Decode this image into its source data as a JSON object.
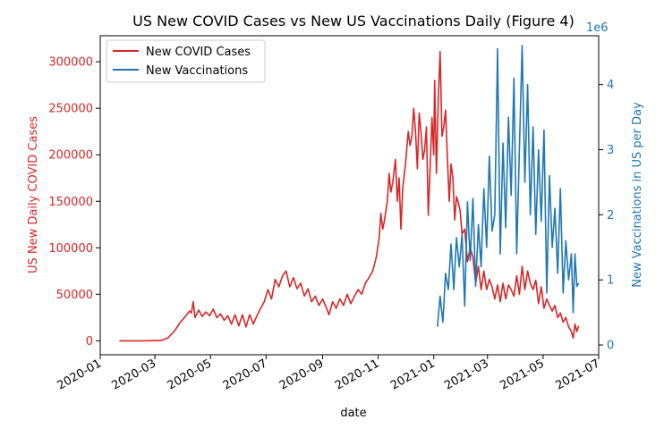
{
  "chart_data": {
    "type": "line",
    "title": "US New COVID Cases vs New US Vaccinations Daily (Figure 4)",
    "xlabel": "date",
    "ylabel_left": "US New Daily COVID Cases",
    "ylabel_right": "New Vaccinations in US per Day",
    "right_axis_multiplier": "1e6",
    "x_range": [
      "2020-01-01",
      "2021-07-01"
    ],
    "x_ticks": [
      "2020-01",
      "2020-03",
      "2020-05",
      "2020-07",
      "2020-09",
      "2020-11",
      "2021-01",
      "2021-03",
      "2021-05",
      "2021-07"
    ],
    "ylim_left": [
      -15000,
      328000
    ],
    "ylim_right": [
      -0.15,
      4.75
    ],
    "y_ticks_left": [
      "0",
      "50000",
      "100000",
      "150000",
      "200000",
      "250000",
      "300000"
    ],
    "y_ticks_right": [
      "0",
      "1",
      "2",
      "3",
      "4"
    ],
    "legend_position": "upper-left",
    "colors": {
      "cases": "#d62728",
      "vaccinations": "#1f77b4"
    },
    "series": [
      {
        "name": "New COVID Cases",
        "axis": "left",
        "points": [
          [
            "2020-01-22",
            0
          ],
          [
            "2020-02-15",
            0
          ],
          [
            "2020-03-08",
            300
          ],
          [
            "2020-03-15",
            3000
          ],
          [
            "2020-03-22",
            10000
          ],
          [
            "2020-03-29",
            20000
          ],
          [
            "2020-04-05",
            28000
          ],
          [
            "2020-04-08",
            32000
          ],
          [
            "2020-04-10",
            30000
          ],
          [
            "2020-04-12",
            42000
          ],
          [
            "2020-04-14",
            25000
          ],
          [
            "2020-04-18",
            33000
          ],
          [
            "2020-04-22",
            26000
          ],
          [
            "2020-04-26",
            31000
          ],
          [
            "2020-04-30",
            27000
          ],
          [
            "2020-05-04",
            34000
          ],
          [
            "2020-05-08",
            25000
          ],
          [
            "2020-05-12",
            29000
          ],
          [
            "2020-05-16",
            22000
          ],
          [
            "2020-05-20",
            27000
          ],
          [
            "2020-05-24",
            18000
          ],
          [
            "2020-05-28",
            28000
          ],
          [
            "2020-06-01",
            16000
          ],
          [
            "2020-06-05",
            28000
          ],
          [
            "2020-06-09",
            15000
          ],
          [
            "2020-06-13",
            28000
          ],
          [
            "2020-06-17",
            18000
          ],
          [
            "2020-06-21",
            27000
          ],
          [
            "2020-06-25",
            35000
          ],
          [
            "2020-06-29",
            42000
          ],
          [
            "2020-07-03",
            55000
          ],
          [
            "2020-07-07",
            45000
          ],
          [
            "2020-07-11",
            66000
          ],
          [
            "2020-07-15",
            58000
          ],
          [
            "2020-07-19",
            70000
          ],
          [
            "2020-07-23",
            75000
          ],
          [
            "2020-07-27",
            58000
          ],
          [
            "2020-07-31",
            68000
          ],
          [
            "2020-08-04",
            56000
          ],
          [
            "2020-08-08",
            62000
          ],
          [
            "2020-08-12",
            48000
          ],
          [
            "2020-08-16",
            56000
          ],
          [
            "2020-08-20",
            42000
          ],
          [
            "2020-08-24",
            48000
          ],
          [
            "2020-08-28",
            38000
          ],
          [
            "2020-09-01",
            45000
          ],
          [
            "2020-09-05",
            36000
          ],
          [
            "2020-09-08",
            28000
          ],
          [
            "2020-09-12",
            42000
          ],
          [
            "2020-09-16",
            35000
          ],
          [
            "2020-09-20",
            45000
          ],
          [
            "2020-09-24",
            38000
          ],
          [
            "2020-09-28",
            50000
          ],
          [
            "2020-10-02",
            40000
          ],
          [
            "2020-10-06",
            48000
          ],
          [
            "2020-10-10",
            55000
          ],
          [
            "2020-10-14",
            50000
          ],
          [
            "2020-10-18",
            62000
          ],
          [
            "2020-10-22",
            68000
          ],
          [
            "2020-10-26",
            75000
          ],
          [
            "2020-10-30",
            90000
          ],
          [
            "2020-11-02",
            110000
          ],
          [
            "2020-11-04",
            137000
          ],
          [
            "2020-11-06",
            120000
          ],
          [
            "2020-11-08",
            130000
          ],
          [
            "2020-11-11",
            150000
          ],
          [
            "2020-11-13",
            180000
          ],
          [
            "2020-11-15",
            160000
          ],
          [
            "2020-11-17",
            170000
          ],
          [
            "2020-11-20",
            195000
          ],
          [
            "2020-11-22",
            150000
          ],
          [
            "2020-11-24",
            175000
          ],
          [
            "2020-11-26",
            120000
          ],
          [
            "2020-11-28",
            165000
          ],
          [
            "2020-12-01",
            190000
          ],
          [
            "2020-12-04",
            225000
          ],
          [
            "2020-12-06",
            210000
          ],
          [
            "2020-12-08",
            220000
          ],
          [
            "2020-12-10",
            250000
          ],
          [
            "2020-12-12",
            225000
          ],
          [
            "2020-12-14",
            185000
          ],
          [
            "2020-12-16",
            245000
          ],
          [
            "2020-12-18",
            225000
          ],
          [
            "2020-12-20",
            195000
          ],
          [
            "2020-12-22",
            205000
          ],
          [
            "2020-12-24",
            230000
          ],
          [
            "2020-12-26",
            135000
          ],
          [
            "2020-12-28",
            185000
          ],
          [
            "2020-12-30",
            240000
          ],
          [
            "2021-01-01",
            200000
          ],
          [
            "2021-01-02",
            280000
          ],
          [
            "2021-01-04",
            180000
          ],
          [
            "2021-01-06",
            260000
          ],
          [
            "2021-01-08",
            311000
          ],
          [
            "2021-01-10",
            220000
          ],
          [
            "2021-01-12",
            230000
          ],
          [
            "2021-01-14",
            248000
          ],
          [
            "2021-01-16",
            195000
          ],
          [
            "2021-01-18",
            150000
          ],
          [
            "2021-01-20",
            190000
          ],
          [
            "2021-01-22",
            175000
          ],
          [
            "2021-01-24",
            130000
          ],
          [
            "2021-01-26",
            155000
          ],
          [
            "2021-01-28",
            148000
          ],
          [
            "2021-01-30",
            140000
          ],
          [
            "2021-02-01",
            115000
          ],
          [
            "2021-02-04",
            120000
          ],
          [
            "2021-02-07",
            85000
          ],
          [
            "2021-02-10",
            100000
          ],
          [
            "2021-02-13",
            90000
          ],
          [
            "2021-02-16",
            62000
          ],
          [
            "2021-02-19",
            80000
          ],
          [
            "2021-02-22",
            55000
          ],
          [
            "2021-02-25",
            75000
          ],
          [
            "2021-02-28",
            55000
          ],
          [
            "2021-03-03",
            66000
          ],
          [
            "2021-03-06",
            58000
          ],
          [
            "2021-03-09",
            45000
          ],
          [
            "2021-03-12",
            60000
          ],
          [
            "2021-03-15",
            42000
          ],
          [
            "2021-03-18",
            62000
          ],
          [
            "2021-03-21",
            45000
          ],
          [
            "2021-03-24",
            60000
          ],
          [
            "2021-03-27",
            55000
          ],
          [
            "2021-03-30",
            48000
          ],
          [
            "2021-04-02",
            70000
          ],
          [
            "2021-04-05",
            50000
          ],
          [
            "2021-04-08",
            80000
          ],
          [
            "2021-04-11",
            55000
          ],
          [
            "2021-04-14",
            75000
          ],
          [
            "2021-04-17",
            62000
          ],
          [
            "2021-04-20",
            55000
          ],
          [
            "2021-04-23",
            65000
          ],
          [
            "2021-04-26",
            40000
          ],
          [
            "2021-04-29",
            58000
          ],
          [
            "2021-05-02",
            35000
          ],
          [
            "2021-05-05",
            45000
          ],
          [
            "2021-05-08",
            38000
          ],
          [
            "2021-05-11",
            32000
          ],
          [
            "2021-05-14",
            38000
          ],
          [
            "2021-05-17",
            25000
          ],
          [
            "2021-05-20",
            30000
          ],
          [
            "2021-05-23",
            20000
          ],
          [
            "2021-05-26",
            25000
          ],
          [
            "2021-05-29",
            15000
          ],
          [
            "2021-06-01",
            10000
          ],
          [
            "2021-06-03",
            3000
          ],
          [
            "2021-06-05",
            18000
          ],
          [
            "2021-06-07",
            10000
          ],
          [
            "2021-06-09",
            16000
          ]
        ]
      },
      {
        "name": "New Vaccinations",
        "axis": "right",
        "points": [
          [
            "2021-01-05",
            0.28
          ],
          [
            "2021-01-08",
            0.75
          ],
          [
            "2021-01-11",
            0.35
          ],
          [
            "2021-01-14",
            1.1
          ],
          [
            "2021-01-17",
            0.85
          ],
          [
            "2021-01-20",
            1.55
          ],
          [
            "2021-01-23",
            0.85
          ],
          [
            "2021-01-26",
            1.65
          ],
          [
            "2021-01-29",
            1.2
          ],
          [
            "2021-02-01",
            1.7
          ],
          [
            "2021-02-04",
            0.6
          ],
          [
            "2021-02-07",
            2.2
          ],
          [
            "2021-02-10",
            1.3
          ],
          [
            "2021-02-13",
            2.25
          ],
          [
            "2021-02-16",
            0.9
          ],
          [
            "2021-02-19",
            1.85
          ],
          [
            "2021-02-22",
            1.2
          ],
          [
            "2021-02-25",
            2.4
          ],
          [
            "2021-02-28",
            1.5
          ],
          [
            "2021-03-03",
            2.9
          ],
          [
            "2021-03-06",
            1.75
          ],
          [
            "2021-03-09",
            2.0
          ],
          [
            "2021-03-12",
            4.55
          ],
          [
            "2021-03-15",
            1.4
          ],
          [
            "2021-03-18",
            3.1
          ],
          [
            "2021-03-21",
            1.8
          ],
          [
            "2021-03-24",
            3.5
          ],
          [
            "2021-03-27",
            2.3
          ],
          [
            "2021-03-30",
            4.1
          ],
          [
            "2021-04-02",
            1.4
          ],
          [
            "2021-04-05",
            3.0
          ],
          [
            "2021-04-08",
            4.6
          ],
          [
            "2021-04-11",
            2.5
          ],
          [
            "2021-04-14",
            4.0
          ],
          [
            "2021-04-17",
            2.0
          ],
          [
            "2021-04-20",
            3.35
          ],
          [
            "2021-04-23",
            1.7
          ],
          [
            "2021-04-26",
            3.0
          ],
          [
            "2021-04-29",
            1.9
          ],
          [
            "2021-05-02",
            3.3
          ],
          [
            "2021-05-05",
            0.8
          ],
          [
            "2021-05-08",
            2.6
          ],
          [
            "2021-05-11",
            1.5
          ],
          [
            "2021-05-14",
            2.1
          ],
          [
            "2021-05-17",
            1.1
          ],
          [
            "2021-05-20",
            2.4
          ],
          [
            "2021-05-23",
            0.8
          ],
          [
            "2021-05-26",
            1.6
          ],
          [
            "2021-05-29",
            1.0
          ],
          [
            "2021-06-01",
            1.4
          ],
          [
            "2021-06-03",
            0.5
          ],
          [
            "2021-06-05",
            1.4
          ],
          [
            "2021-06-07",
            0.9
          ],
          [
            "2021-06-09",
            0.95
          ]
        ]
      }
    ]
  }
}
